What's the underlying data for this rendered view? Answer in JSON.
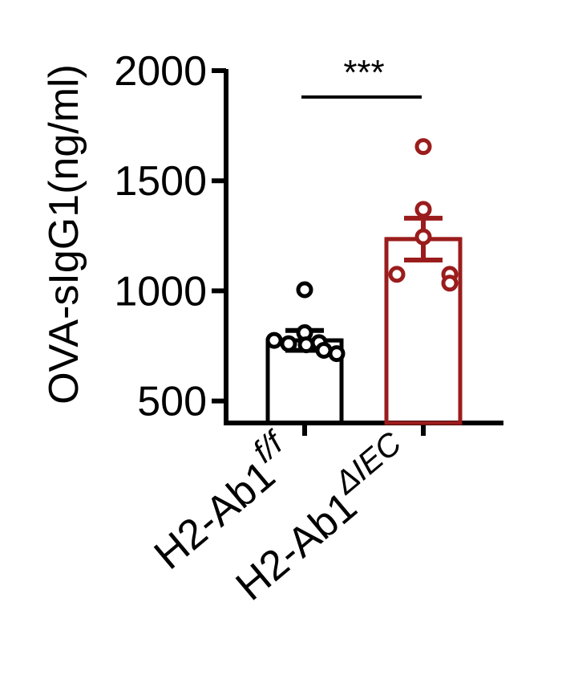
{
  "chart_data": {
    "type": "bar",
    "title": "",
    "ylabel": "OVA-sIgG1(ng/ml)",
    "xlabel": "",
    "ylim": [
      400,
      2000
    ],
    "yticks": [
      500,
      1000,
      1500,
      2000
    ],
    "grid": false,
    "colors": {
      "axis": "#000000",
      "group1": "#000000",
      "group2": "#9b1c1c"
    },
    "categories": [
      {
        "base": "H2-Ab1",
        "sup": "f/f"
      },
      {
        "base": "H2-Ab1",
        "sup": "ΔIEC"
      }
    ],
    "series": [
      {
        "mean": 775,
        "sem": 45,
        "points": [
          1005,
          810,
          775,
          765,
          760,
          755,
          730,
          715
        ]
      },
      {
        "mean": 1235,
        "sem": 95,
        "points": [
          1655,
          1370,
          1245,
          1075,
          1075,
          1035
        ]
      }
    ],
    "significance": {
      "label": "***",
      "between": [
        0,
        1
      ],
      "y": 1880
    }
  }
}
